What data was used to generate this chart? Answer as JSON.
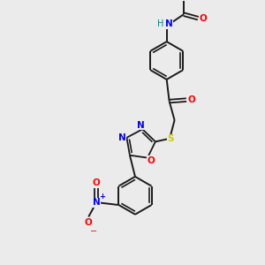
{
  "background_color": "#ebebeb",
  "bond_color": "#1a1a1a",
  "N_color": "#0000ff",
  "O_color": "#ff0000",
  "S_color": "#cccc00",
  "H_color": "#008080",
  "plus_color": "#0000ff",
  "minus_color": "#ff0000",
  "figsize": [
    3.0,
    3.0
  ],
  "dpi": 100,
  "xlim": [
    0,
    10
  ],
  "ylim": [
    0,
    10
  ]
}
